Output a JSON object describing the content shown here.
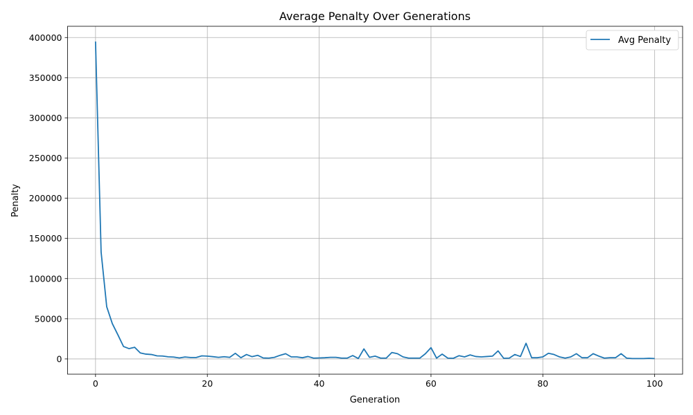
{
  "chart_data": {
    "type": "line",
    "title": "Average Penalty Over Generations",
    "xlabel": "Generation",
    "ylabel": "Penalty",
    "xlim": [
      -5,
      105
    ],
    "ylim": [
      -19000,
      414000
    ],
    "xticks": [
      0,
      20,
      40,
      60,
      80,
      100
    ],
    "yticks": [
      0,
      50000,
      100000,
      150000,
      200000,
      250000,
      300000,
      350000,
      400000
    ],
    "grid": true,
    "legend_position": "top-right",
    "color": "#1f77b4",
    "series": [
      {
        "name": "Avg Penalty",
        "x": [
          0,
          1,
          2,
          3,
          4,
          5,
          6,
          7,
          8,
          9,
          10,
          11,
          12,
          13,
          14,
          15,
          16,
          17,
          18,
          19,
          20,
          21,
          22,
          23,
          24,
          25,
          26,
          27,
          28,
          29,
          30,
          31,
          32,
          33,
          34,
          35,
          36,
          37,
          38,
          39,
          40,
          41,
          42,
          43,
          44,
          45,
          46,
          47,
          48,
          49,
          50,
          51,
          52,
          53,
          54,
          55,
          56,
          57,
          58,
          59,
          60,
          61,
          62,
          63,
          64,
          65,
          66,
          67,
          68,
          69,
          70,
          71,
          72,
          73,
          74,
          75,
          76,
          77,
          78,
          79,
          80,
          81,
          82,
          83,
          84,
          85,
          86,
          87,
          88,
          89,
          90,
          91,
          92,
          93,
          94,
          95,
          96,
          97,
          98,
          99,
          100
        ],
        "values": [
          395000,
          133000,
          65000,
          44000,
          30000,
          15500,
          12800,
          14500,
          7500,
          6000,
          5500,
          3800,
          3600,
          2600,
          2300,
          1200,
          2400,
          1800,
          1800,
          3800,
          3500,
          2800,
          2000,
          2700,
          2000,
          7000,
          1500,
          5500,
          2800,
          4500,
          1200,
          1000,
          2000,
          4500,
          6500,
          2500,
          2500,
          1500,
          3000,
          1000,
          1200,
          1500,
          2000,
          2000,
          1000,
          1000,
          4200,
          500,
          12500,
          2000,
          3500,
          1000,
          1000,
          8000,
          6500,
          2500,
          1000,
          1000,
          1000,
          6500,
          14000,
          1000,
          6000,
          1000,
          800,
          4000,
          2500,
          5000,
          3000,
          2500,
          3000,
          3500,
          10000,
          800,
          1000,
          5500,
          3000,
          19500,
          1500,
          1500,
          2500,
          7000,
          5500,
          2500,
          1000,
          2500,
          6500,
          1500,
          1500,
          6500,
          3500,
          1000,
          1500,
          1500,
          6500,
          1000,
          500,
          500,
          500,
          800,
          500
        ]
      }
    ]
  }
}
